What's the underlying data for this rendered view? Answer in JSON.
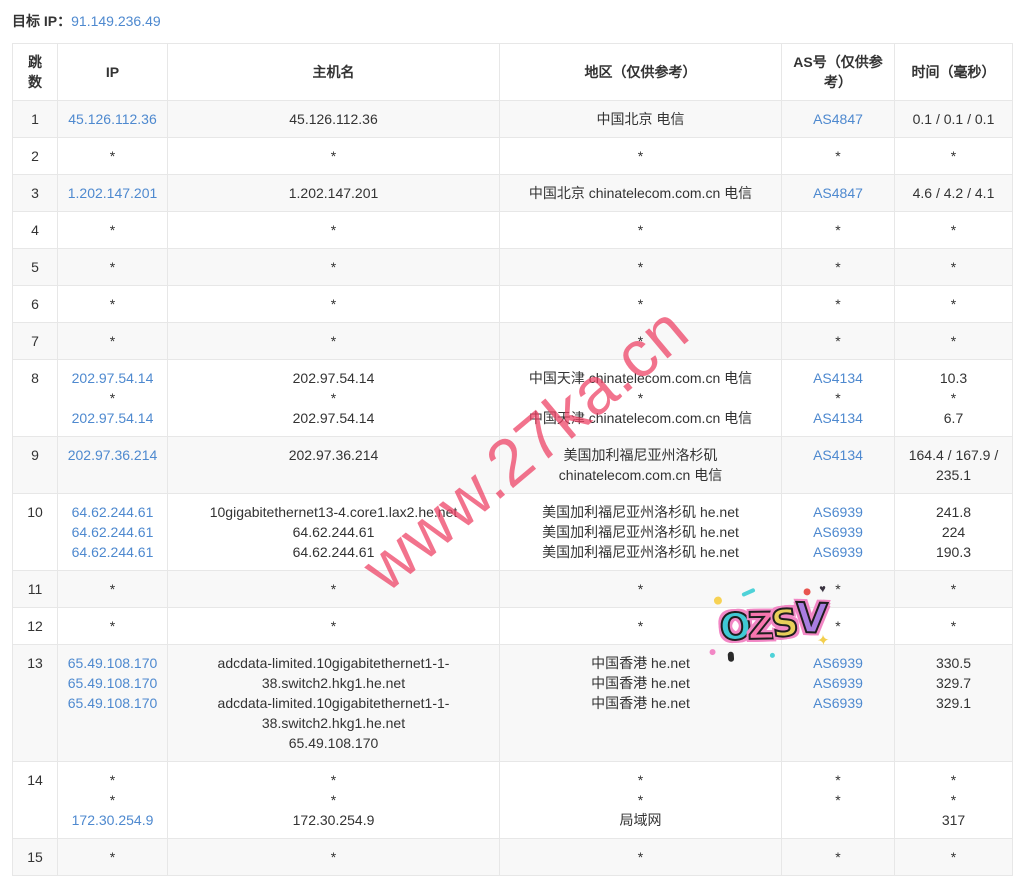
{
  "page": {
    "target_ip_label": "目标 IP：",
    "target_ip": "91.149.236.49"
  },
  "colors": {
    "link_blue": "#4e89cf",
    "row_stripe": "#f8f8f8",
    "border": "#e7e7e7",
    "text": "#333333"
  },
  "watermark": {
    "text": "www.27ka.cn",
    "color": "#ee3e62"
  },
  "sticker": {
    "text": "OZSV",
    "letter_colors": [
      "#3fc9d4",
      "#f776ae",
      "#e8cf5a",
      "#a97de0"
    ]
  },
  "table": {
    "headers": [
      "跳数",
      "IP",
      "主机名",
      "地区（仅供参考）",
      "AS号（仅供参考）",
      "时间（毫秒）"
    ],
    "rows": [
      {
        "hop": "1",
        "ip": [
          "45.126.112.36"
        ],
        "host": [
          "45.126.112.36"
        ],
        "region": [
          "中国北京 电信"
        ],
        "asn": [
          "AS4847"
        ],
        "time": [
          "0.1 / 0.1 / 0.1"
        ]
      },
      {
        "hop": "2",
        "ip": [
          "*"
        ],
        "host": [
          "*"
        ],
        "region": [
          "*"
        ],
        "asn": [
          "*"
        ],
        "time": [
          "*"
        ]
      },
      {
        "hop": "3",
        "ip": [
          "1.202.147.201"
        ],
        "host": [
          "1.202.147.201"
        ],
        "region": [
          "中国北京 chinatelecom.com.cn 电信"
        ],
        "asn": [
          "AS4847"
        ],
        "time": [
          "4.6 / 4.2 / 4.1"
        ]
      },
      {
        "hop": "4",
        "ip": [
          "*"
        ],
        "host": [
          "*"
        ],
        "region": [
          "*"
        ],
        "asn": [
          "*"
        ],
        "time": [
          "*"
        ]
      },
      {
        "hop": "5",
        "ip": [
          "*"
        ],
        "host": [
          "*"
        ],
        "region": [
          "*"
        ],
        "asn": [
          "*"
        ],
        "time": [
          "*"
        ]
      },
      {
        "hop": "6",
        "ip": [
          "*"
        ],
        "host": [
          "*"
        ],
        "region": [
          "*"
        ],
        "asn": [
          "*"
        ],
        "time": [
          "*"
        ]
      },
      {
        "hop": "7",
        "ip": [
          "*"
        ],
        "host": [
          "*"
        ],
        "region": [
          "*"
        ],
        "asn": [
          "*"
        ],
        "time": [
          "*"
        ]
      },
      {
        "hop": "8",
        "ip": [
          "202.97.54.14",
          "*",
          "202.97.54.14"
        ],
        "host": [
          "202.97.54.14",
          "*",
          "202.97.54.14"
        ],
        "region": [
          "中国天津 chinatelecom.com.cn 电信",
          "*",
          "中国天津 chinatelecom.com.cn 电信"
        ],
        "asn": [
          "AS4134",
          "*",
          "AS4134"
        ],
        "time": [
          "10.3",
          "*",
          "6.7"
        ]
      },
      {
        "hop": "9",
        "ip": [
          "202.97.36.214"
        ],
        "host": [
          "202.97.36.214"
        ],
        "region": [
          "美国加利福尼亚州洛杉矶 chinatelecom.com.cn 电信"
        ],
        "asn": [
          "AS4134"
        ],
        "time": [
          "164.4 / 167.9 / 235.1"
        ]
      },
      {
        "hop": "10",
        "ip": [
          "64.62.244.61",
          "64.62.244.61",
          "64.62.244.61"
        ],
        "host": [
          "10gigabitethernet13-4.core1.lax2.he.net",
          "64.62.244.61",
          "64.62.244.61"
        ],
        "region": [
          "美国加利福尼亚州洛杉矶 he.net",
          "美国加利福尼亚州洛杉矶 he.net",
          "美国加利福尼亚州洛杉矶 he.net"
        ],
        "asn": [
          "AS6939",
          "AS6939",
          "AS6939"
        ],
        "time": [
          "241.8",
          "224",
          "190.3"
        ]
      },
      {
        "hop": "11",
        "ip": [
          "*"
        ],
        "host": [
          "*"
        ],
        "region": [
          "*"
        ],
        "asn": [
          "*"
        ],
        "time": [
          "*"
        ]
      },
      {
        "hop": "12",
        "ip": [
          "*"
        ],
        "host": [
          "*"
        ],
        "region": [
          "*"
        ],
        "asn": [
          "*"
        ],
        "time": [
          "*"
        ]
      },
      {
        "hop": "13",
        "ip": [
          "65.49.108.170",
          "65.49.108.170",
          "65.49.108.170"
        ],
        "host": [
          "adcdata-limited.10gigabitethernet1-1-38.switch2.hkg1.he.net",
          "adcdata-limited.10gigabitethernet1-1-38.switch2.hkg1.he.net",
          "65.49.108.170"
        ],
        "region": [
          "中国香港 he.net",
          "中国香港 he.net",
          "中国香港 he.net"
        ],
        "asn": [
          "AS6939",
          "AS6939",
          "AS6939"
        ],
        "time": [
          "330.5",
          "329.7",
          "329.1"
        ]
      },
      {
        "hop": "14",
        "ip": [
          "*",
          "*",
          "172.30.254.9"
        ],
        "host": [
          "*",
          "*",
          "172.30.254.9"
        ],
        "region": [
          "*",
          "*",
          "局域网"
        ],
        "asn": [
          "*",
          "*"
        ],
        "time": [
          "*",
          "*",
          "317"
        ]
      },
      {
        "hop": "15",
        "ip": [
          "*"
        ],
        "host": [
          "*"
        ],
        "region": [
          "*"
        ],
        "asn": [
          "*"
        ],
        "time": [
          "*"
        ]
      }
    ]
  }
}
